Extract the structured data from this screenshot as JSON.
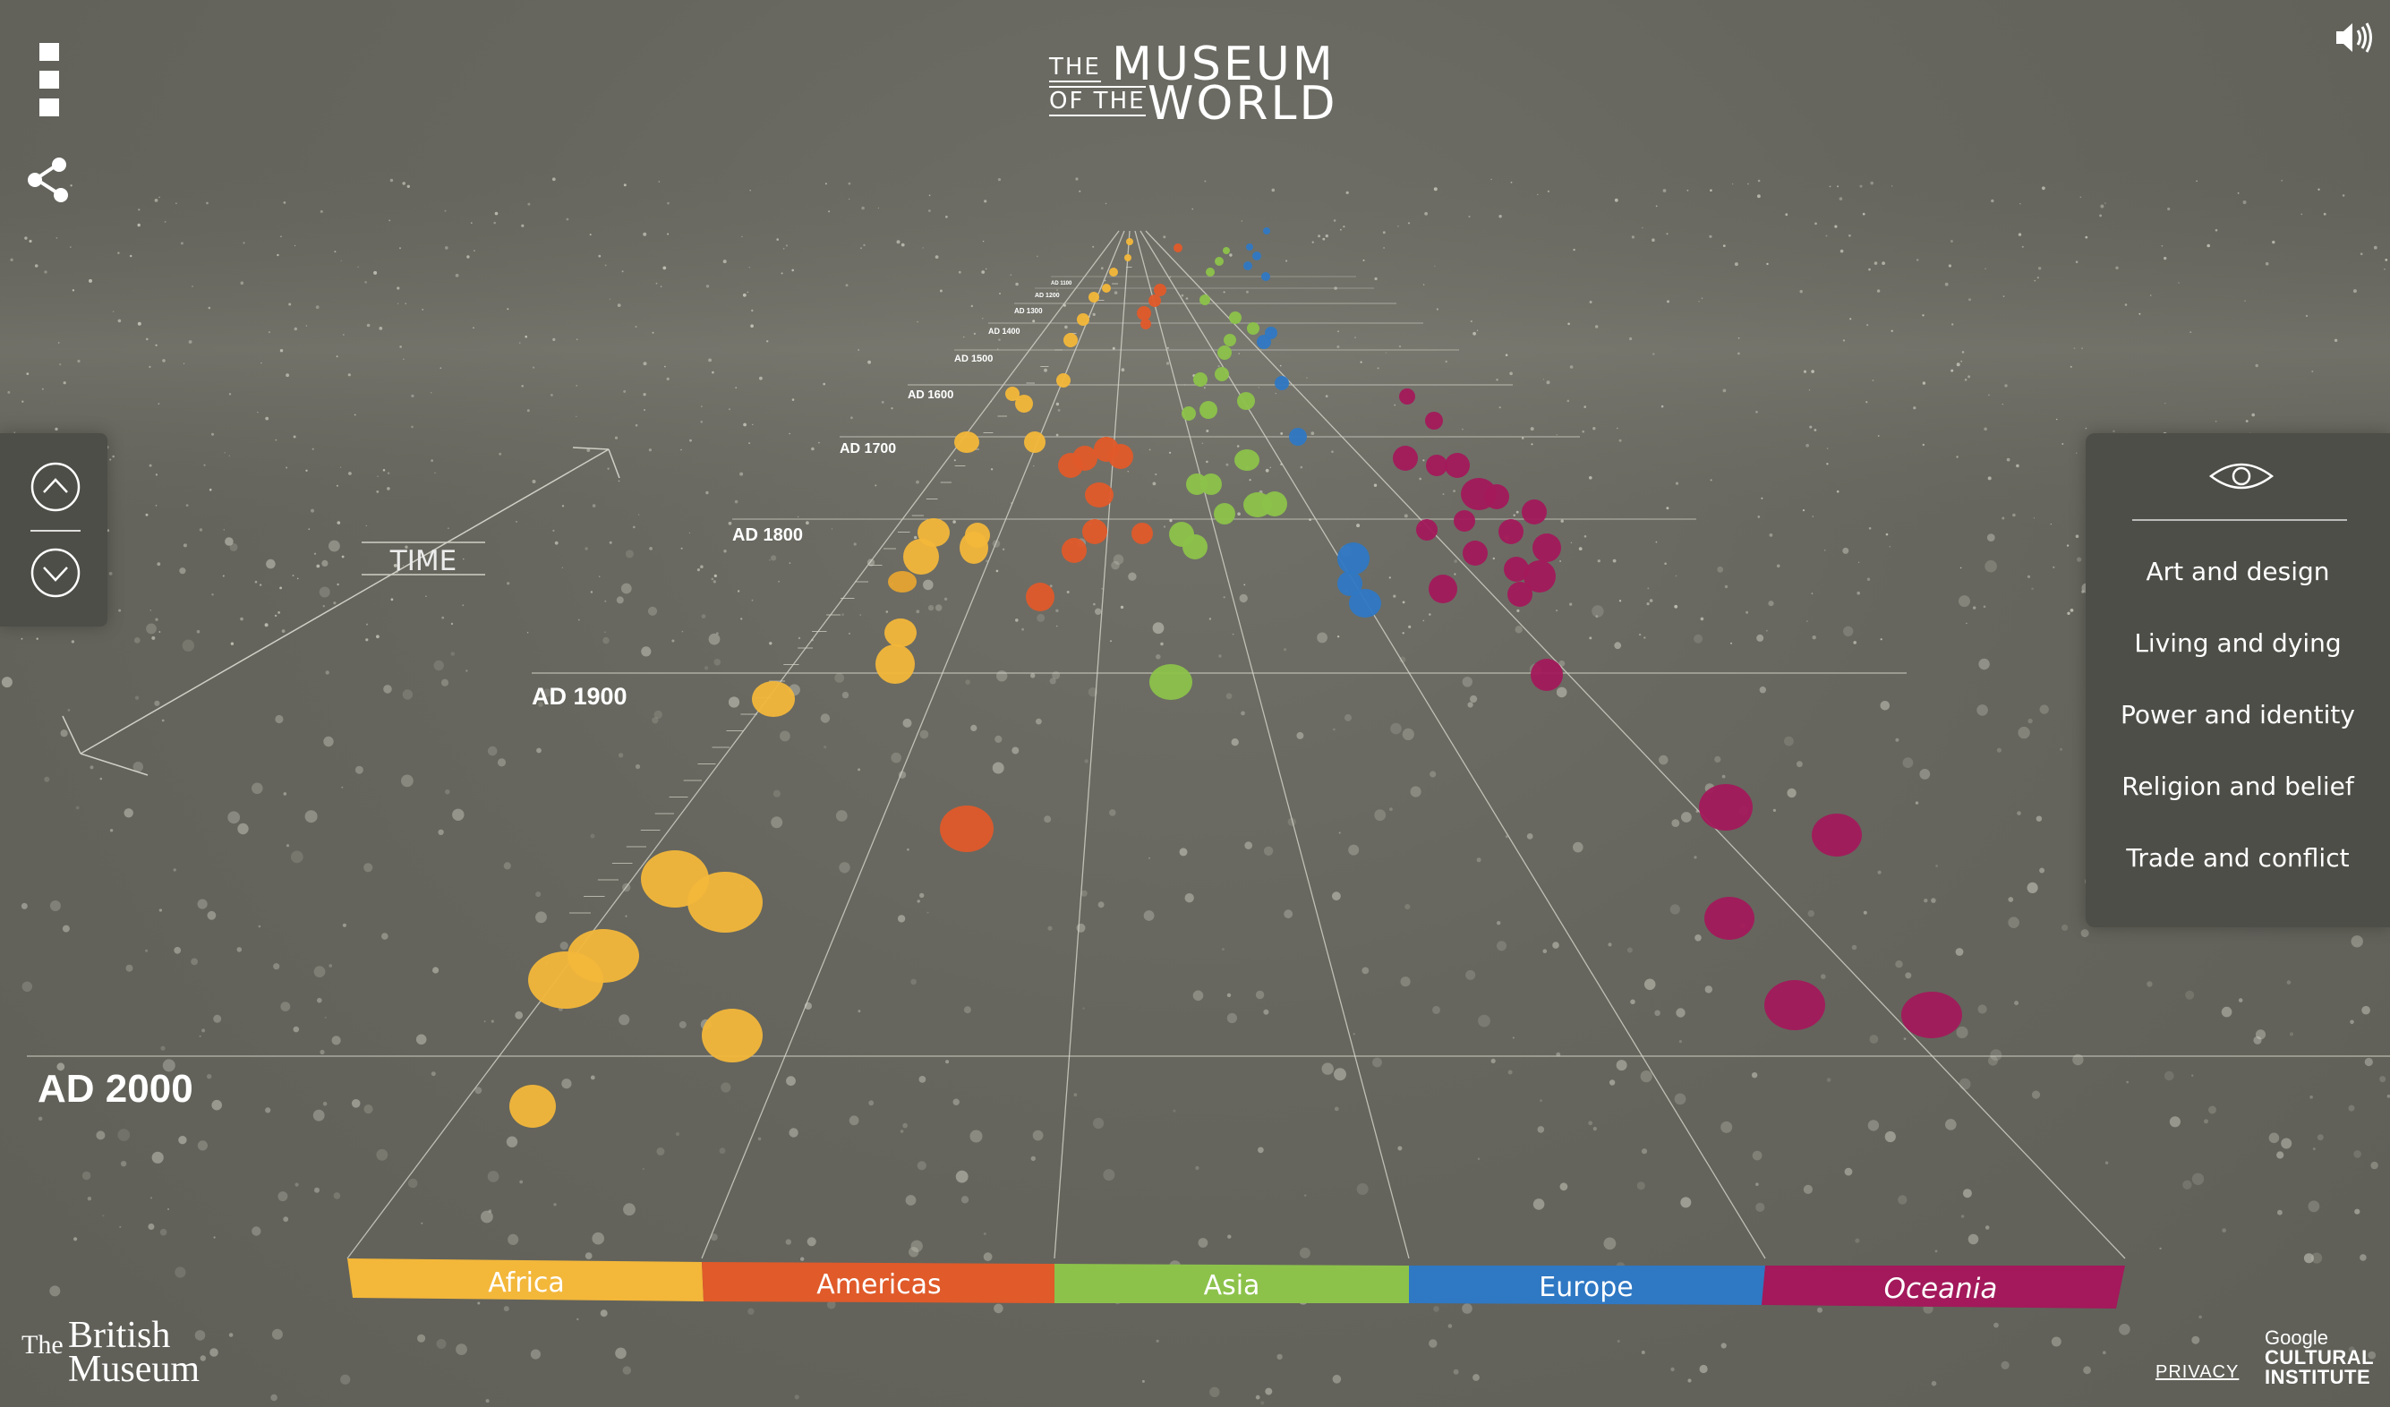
{
  "logo": {
    "line1_small": "THE",
    "line1_big": "MUSEUM",
    "line2_small": "OF THE",
    "line2_big": "WORLD"
  },
  "icons": {
    "menu": "menu-icon",
    "share": "share-icon",
    "sound": "speaker-icon",
    "up": "chevron-up-icon",
    "down": "chevron-down-icon",
    "eye": "eye-icon"
  },
  "time_axis": {
    "label": "TIME",
    "major": [
      "AD 2000",
      "AD 1900",
      "AD 1800",
      "AD 1700",
      "AD 1600"
    ],
    "minor": [
      "AD 1500",
      "AD 1400",
      "AD 1300",
      "AD 1200",
      "AD 1100"
    ]
  },
  "regions": [
    {
      "name": "Africa",
      "color": "#f3b73a"
    },
    {
      "name": "Americas",
      "color": "#e05a2a"
    },
    {
      "name": "Asia",
      "color": "#8cc24a"
    },
    {
      "name": "Europe",
      "color": "#2f78c4"
    },
    {
      "name": "Oceania",
      "color": "#a3195b"
    }
  ],
  "filters": {
    "items": [
      "Art and design",
      "Living and dying",
      "Power and identity",
      "Religion and belief",
      "Trade and conflict"
    ]
  },
  "footer": {
    "bm_the": "The",
    "bm_british": "British",
    "bm_museum": "Museum",
    "privacy": "PRIVACY",
    "google": "Google",
    "cultural": "CULTURAL",
    "institute": "INSTITUTE"
  }
}
